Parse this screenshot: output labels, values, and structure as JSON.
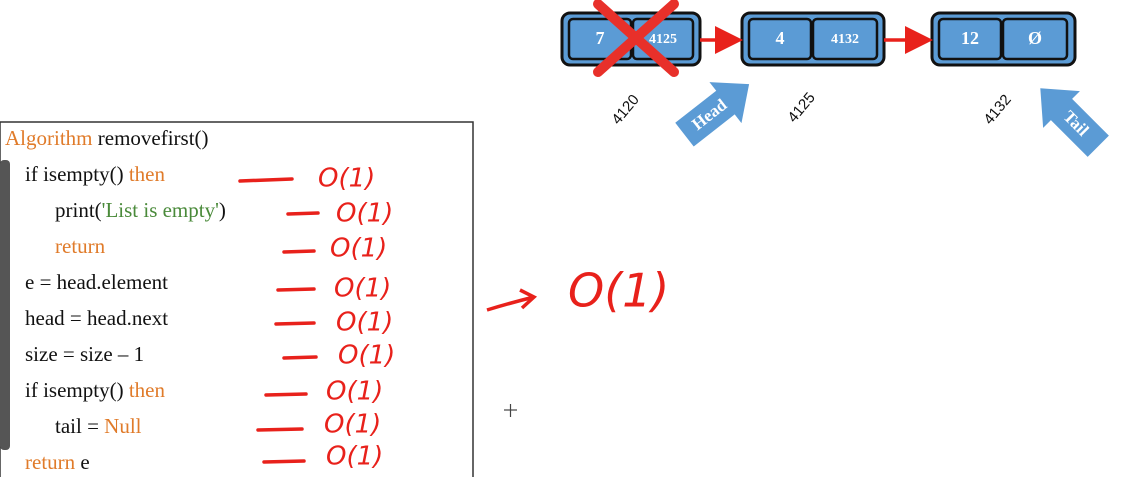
{
  "diagram": {
    "nodes": [
      {
        "value": "7",
        "next": "4125",
        "address": "4120"
      },
      {
        "value": "4",
        "next": "4132",
        "address": "4125"
      },
      {
        "value": "12",
        "next": "Ø",
        "address": "4132"
      }
    ],
    "head": "Head",
    "tail": "Tail"
  },
  "code": {
    "lines": [
      [
        "Algorithm",
        " removefirst()"
      ],
      [
        "if isempty()",
        " then"
      ],
      [
        "print(",
        "'List is empty'",
        ")"
      ],
      [
        "return"
      ],
      [
        "e = head.element"
      ],
      [
        "head = head.next"
      ],
      [
        "size = size – 1"
      ],
      [
        "if isempty()",
        " then"
      ],
      [
        "tail = ",
        "Null"
      ],
      [
        "return",
        " e"
      ]
    ],
    "annotations": [
      "O(1)",
      "O(1)",
      "O(1)",
      "O(1)",
      "O(1)",
      "O(1)",
      "O(1)",
      "O(1)",
      "O(1)"
    ],
    "total": "O(1)"
  }
}
